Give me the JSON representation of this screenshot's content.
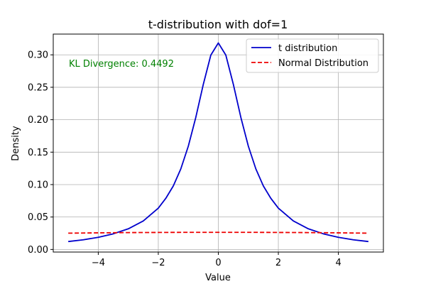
{
  "chart_data": {
    "type": "line",
    "title": "t-distribution with dof=1",
    "xlabel": "Value",
    "ylabel": "Density",
    "xlim": [
      -5.5,
      5.5
    ],
    "ylim": [
      -0.004,
      0.332
    ],
    "xticks": [
      -4,
      -2,
      0,
      2,
      4
    ],
    "xtick_labels": [
      "−4",
      "−2",
      "0",
      "2",
      "4"
    ],
    "yticks": [
      0.0,
      0.05,
      0.1,
      0.15,
      0.2,
      0.25,
      0.3
    ],
    "ytick_labels": [
      "0.00",
      "0.05",
      "0.10",
      "0.15",
      "0.20",
      "0.25",
      "0.30"
    ],
    "grid": true,
    "legend_position": "top-right",
    "series": [
      {
        "name": "t distribution",
        "color": "#0000cc",
        "style": "solid",
        "x": [
          -5,
          -4.5,
          -4,
          -3.5,
          -3,
          -2.5,
          -2,
          -1.75,
          -1.5,
          -1.25,
          -1,
          -0.75,
          -0.5,
          -0.25,
          0,
          0.25,
          0.5,
          0.75,
          1,
          1.25,
          1.5,
          1.75,
          2,
          2.5,
          3,
          3.5,
          4,
          4.5,
          5
        ],
        "y": [
          0.0122,
          0.0149,
          0.0187,
          0.0241,
          0.0318,
          0.0439,
          0.0637,
          0.0788,
          0.0979,
          0.1242,
          0.1592,
          0.2037,
          0.2546,
          0.2996,
          0.3183,
          0.2996,
          0.2546,
          0.2037,
          0.1592,
          0.1242,
          0.0979,
          0.0788,
          0.0637,
          0.0439,
          0.0318,
          0.0241,
          0.0187,
          0.0149,
          0.0122
        ]
      },
      {
        "name": "Normal Distribution",
        "color": "#ee0000",
        "style": "dashed",
        "x": [
          -5,
          -4,
          -3,
          -2,
          -1,
          0,
          1,
          2,
          3,
          4,
          5
        ],
        "y": [
          0.0251,
          0.0256,
          0.026,
          0.0262,
          0.0264,
          0.0264,
          0.0264,
          0.0262,
          0.026,
          0.0256,
          0.0251
        ]
      }
    ],
    "annotation": {
      "text": "KL Divergence: 0.4492",
      "color": "#008000"
    }
  }
}
